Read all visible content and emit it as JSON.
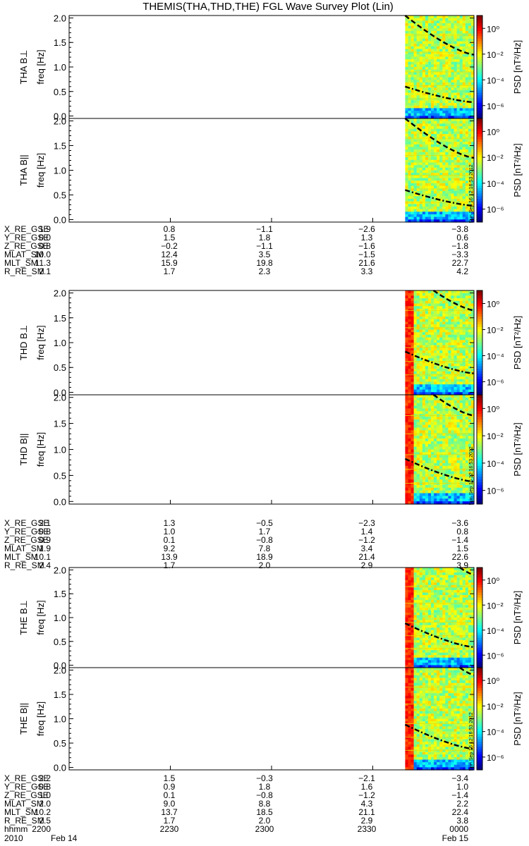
{
  "title": "THEMIS(THA,THD,THE) FGL Wave Survey Plot (Lin)",
  "stamp": "Sun Sep 16 12:16:53 2012",
  "colors": {
    "axis": "#000000",
    "fit_line": "#000000",
    "harmonic_line": "#e8e000"
  },
  "colorbar": {
    "label": "PSD [nT²/Hz]",
    "ticks": [
      "10⁰",
      "10⁻²",
      "10⁻⁴",
      "10⁻⁶"
    ],
    "log_range": [
      -7,
      1
    ]
  },
  "panels": [
    {
      "probe": "THA",
      "component": "B⊥",
      "ylabel_probe": "THA B⊥",
      "ylabel_unit": "freq [Hz]",
      "ylim": [
        0,
        2.0
      ],
      "yticks": [
        "0.0",
        "0.5",
        "1.0",
        "1.5",
        "2.0"
      ]
    },
    {
      "probe": "THA",
      "component": "B||",
      "ylabel_probe": "THA B||",
      "ylabel_unit": "freq [Hz]",
      "ylim": [
        0,
        2.0
      ],
      "yticks": [
        "0.0",
        "0.5",
        "1.0",
        "1.5",
        "2.0"
      ]
    },
    {
      "probe": "THD",
      "component": "B⊥",
      "ylabel_probe": "THD B⊥",
      "ylabel_unit": "freq [Hz]",
      "ylim": [
        0,
        2.0
      ],
      "yticks": [
        "0.0",
        "0.5",
        "1.0",
        "1.5",
        "2.0"
      ]
    },
    {
      "probe": "THD",
      "component": "B||",
      "ylabel_probe": "THD B||",
      "ylabel_unit": "freq [Hz]",
      "ylim": [
        0,
        2.0
      ],
      "yticks": [
        "0.0",
        "0.5",
        "1.0",
        "1.5",
        "2.0"
      ]
    },
    {
      "probe": "THE",
      "component": "B⊥",
      "ylabel_probe": "THE B⊥",
      "ylabel_unit": "freq [Hz]",
      "ylim": [
        0,
        2.0
      ],
      "yticks": [
        "0.0",
        "0.5",
        "1.0",
        "1.5",
        "2.0"
      ]
    },
    {
      "probe": "THE",
      "component": "B||",
      "ylabel_probe": "THE B||",
      "ylabel_unit": "freq [Hz]",
      "ylim": [
        0,
        2.0
      ],
      "yticks": [
        "0.0",
        "0.5",
        "1.0",
        "1.5",
        "2.0"
      ]
    }
  ],
  "ephemeris": [
    {
      "probe": "THA",
      "rows": [
        {
          "label": "X_RE_GSE",
          "values": [
            "1.9",
            "0.8",
            "−1.1",
            "−2.6",
            "−3.8"
          ]
        },
        {
          "label": "Y_RE_GSE",
          "values": [
            "0.0",
            "1.5",
            "1.8",
            "1.3",
            "0.6"
          ]
        },
        {
          "label": "Z_RE_GSE",
          "values": [
            "0.8",
            "−0.2",
            "−1.1",
            "−1.6",
            "−1.8"
          ]
        },
        {
          "label": "MLAT_SM",
          "values": [
            "10.0",
            "12.4",
            "3.5",
            "−1.5",
            "−3.3"
          ]
        },
        {
          "label": "MLT_SM",
          "values": [
            "11.3",
            "15.9",
            "19.8",
            "21.6",
            "22.7"
          ]
        },
        {
          "label": "R_RE_SM",
          "values": [
            "2.1",
            "1.7",
            "2.3",
            "3.3",
            "4.2"
          ]
        }
      ]
    },
    {
      "probe": "THD",
      "rows": [
        {
          "label": "X_RE_GSE",
          "values": [
            "2.1",
            "1.3",
            "−0.5",
            "−2.3",
            "−3.6"
          ]
        },
        {
          "label": "Y_RE_GSE",
          "values": [
            "−0.8",
            "1.0",
            "1.7",
            "1.4",
            "0.8"
          ]
        },
        {
          "label": "Z_RE_GSE",
          "values": [
            "0.9",
            "0.1",
            "−0.8",
            "−1.2",
            "−1.4"
          ]
        },
        {
          "label": "MLAT_SM",
          "values": [
            "1.9",
            "9.2",
            "7.8",
            "3.4",
            "1.5"
          ]
        },
        {
          "label": "MLT_SM",
          "values": [
            "10.1",
            "13.9",
            "18.9",
            "21.4",
            "22.6"
          ]
        },
        {
          "label": "R_RE_SM",
          "values": [
            "2.4",
            "1.7",
            "2.0",
            "2.9",
            "3.9"
          ]
        }
      ]
    },
    {
      "probe": "THE",
      "rows": [
        {
          "label": "X_RE_GSE",
          "values": [
            "2.2",
            "1.5",
            "−0.3",
            "−2.1",
            "−3.4"
          ]
        },
        {
          "label": "Y_RE_GSE",
          "values": [
            "−0.8",
            "0.9",
            "1.8",
            "1.6",
            "1.0"
          ]
        },
        {
          "label": "Z_RE_GSE",
          "values": [
            "1.0",
            "0.1",
            "−0.8",
            "−1.2",
            "−1.4"
          ]
        },
        {
          "label": "MLAT_SM",
          "values": [
            "2.0",
            "9.0",
            "8.8",
            "4.3",
            "2.2"
          ]
        },
        {
          "label": "MLT_SM",
          "values": [
            "10.2",
            "13.7",
            "18.5",
            "21.1",
            "22.4"
          ]
        },
        {
          "label": "R_RE_SM",
          "values": [
            "2.5",
            "1.7",
            "2.0",
            "2.9",
            "3.8"
          ]
        },
        {
          "label": "hhmm",
          "values": [
            "2200",
            "2230",
            "2300",
            "2330",
            "0000"
          ]
        }
      ]
    }
  ],
  "date_row": {
    "label": "2010",
    "left": "Feb 14",
    "right": "Feb 15"
  },
  "chart_data": {
    "type": "heatmap",
    "title": "THEMIS(THA,THD,THE) FGL Wave Survey Plot (Lin)",
    "xlabel": "hhmm",
    "x_ticks": [
      "2200",
      "2230",
      "2300",
      "2330",
      "0000"
    ],
    "xlim": [
      "2010-02-14 22:00",
      "2010-02-15 00:00"
    ],
    "data_start": "2010-02-14 23:40",
    "ylabel": "freq [Hz]",
    "ylim": [
      0,
      2.0
    ],
    "zlabel": "PSD [nT²/Hz]",
    "z_scale": "log",
    "series": [
      {
        "name": "THA B⊥",
        "data_start": "2010-02-14 23:40",
        "upper_curve": [
          [
            23.66,
            2.05
          ],
          [
            24.0,
            1.25
          ]
        ],
        "lower_curve": [
          [
            23.66,
            0.6
          ],
          [
            24.0,
            0.28
          ]
        ]
      },
      {
        "name": "THA B||",
        "data_start": "2010-02-14 23:40",
        "upper_curve": [
          [
            23.66,
            2.05
          ],
          [
            24.0,
            1.25
          ]
        ],
        "lower_curve": [
          [
            23.66,
            0.6
          ],
          [
            24.0,
            0.28
          ]
        ]
      },
      {
        "name": "THD B⊥",
        "data_start": "2010-02-14 23:40",
        "upper_curve": [
          [
            23.8,
            2.05
          ],
          [
            24.0,
            1.65
          ]
        ],
        "lower_curve": [
          [
            23.66,
            0.82
          ],
          [
            24.0,
            0.38
          ]
        ]
      },
      {
        "name": "THD B||",
        "data_start": "2010-02-14 23:40",
        "upper_curve": [
          [
            23.8,
            2.05
          ],
          [
            24.0,
            1.65
          ]
        ],
        "lower_curve": [
          [
            23.66,
            0.82
          ],
          [
            24.0,
            0.38
          ]
        ]
      },
      {
        "name": "THE B⊥",
        "data_start": "2010-02-14 23:40",
        "upper_curve": [
          [
            23.93,
            2.05
          ],
          [
            24.0,
            1.9
          ]
        ],
        "lower_curve": [
          [
            23.66,
            0.88
          ],
          [
            24.0,
            0.38
          ]
        ]
      },
      {
        "name": "THE B||",
        "data_start": "2010-02-14 23:40",
        "upper_curve": [
          [
            23.93,
            2.05
          ],
          [
            24.0,
            1.9
          ]
        ],
        "lower_curve": [
          [
            23.66,
            0.88
          ],
          [
            24.0,
            0.38
          ]
        ]
      }
    ]
  }
}
